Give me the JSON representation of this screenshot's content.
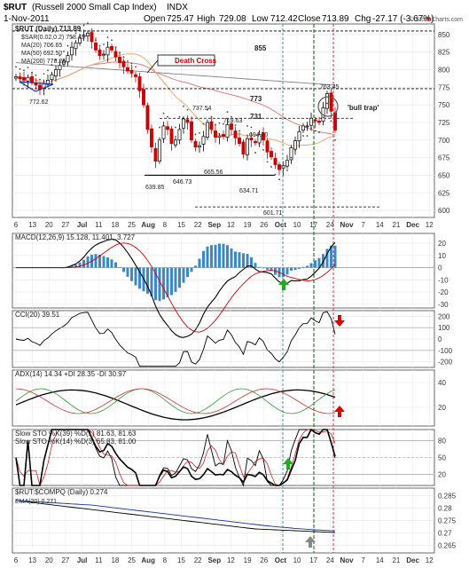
{
  "header": {
    "symbol": "$RUT",
    "name": "(Russell 2000 Small Cap Index)",
    "exchange": "INDX",
    "date": "1-Nov-2011",
    "open_label": "Open",
    "open": "725.47",
    "high_label": "High",
    "high": "729.08",
    "low_label": "Low",
    "low": "712.42",
    "close_label": "Close",
    "close": "713.89",
    "chg_label": "Chg",
    "chg": "-27.17 (-3.67%)",
    "chg_arrow": "▼",
    "watermark": "© StockCharts.com"
  },
  "colors": {
    "up": "#000000",
    "down": "#cc0000",
    "ma20": "#e8a060",
    "ma50": "#e07070",
    "ma200": "#808080",
    "macd_hist": "#3a88c8",
    "arrow_green": "#22aa22",
    "arrow_red": "#dd0000",
    "vline_green": "#117711",
    "vline_teal": "#5599aa",
    "vline_red": "#dd4444"
  },
  "x_axis": {
    "ticks": [
      "6",
      "13",
      "20",
      "27",
      "Jul",
      "11",
      "18",
      "25",
      "Aug",
      "8",
      "15",
      "22",
      "Sep",
      "12",
      "19",
      "26",
      "Oct",
      "10",
      "17",
      "24",
      "Nov",
      "7",
      "14",
      "21",
      "Dec",
      "12"
    ],
    "bold": [
      "Jul",
      "Aug",
      "Sep",
      "Oct",
      "Nov",
      "Dec"
    ]
  },
  "chart_data": [
    {
      "type": "candlestick",
      "title": "$RUT (Daily) 713.89",
      "legend": [
        "$SAR(0.02,0.2) 758.43",
        "MA(20) 706.65",
        "MA(50) 692.50",
        "MA(200) 778.26"
      ],
      "y_ticks": [
        600,
        625,
        650,
        675,
        700,
        725,
        750,
        775,
        800,
        825,
        850
      ],
      "ylim": [
        590,
        865
      ],
      "closes": [
        790,
        787,
        785,
        789,
        782,
        778,
        772,
        780,
        785,
        793,
        800,
        806,
        812,
        820,
        832,
        838,
        845,
        849,
        852,
        840,
        828,
        820,
        822,
        832,
        828,
        818,
        810,
        804,
        798,
        795,
        790,
        770,
        750,
        715,
        690,
        670,
        700,
        720,
        715,
        695,
        700,
        715,
        730,
        725,
        700,
        690,
        692,
        705,
        725,
        715,
        704,
        706,
        705,
        722,
        715,
        703,
        695,
        680,
        702,
        700,
        696,
        708,
        700,
        683,
        676,
        665,
        658,
        664,
        671,
        689,
        699,
        712,
        720,
        720,
        731,
        727,
        725,
        746,
        766,
        741,
        714
      ],
      "annotations": [
        "855",
        "Death Cross",
        "773",
        "731",
        "'bull trap'",
        "772.62",
        "737.54",
        "719.63",
        "694.70",
        "665.56",
        "639.85",
        "646.73",
        "634.71",
        "601.71",
        "763.45"
      ]
    },
    {
      "type": "line",
      "title": "MACD(12,26,9) 15.128, 11.401, 3.727",
      "series": [
        {
          "name": "MACD"
        },
        {
          "name": "Signal"
        },
        {
          "name": "Histogram"
        }
      ],
      "y_ticks": [
        20,
        10,
        0,
        -10,
        -20,
        -30
      ],
      "ylim": [
        -33,
        28
      ]
    },
    {
      "type": "line",
      "title": "CCI(20) 39.51",
      "y_ticks": [
        200,
        100,
        0,
        -100,
        -200
      ],
      "ylim": [
        -250,
        250
      ]
    },
    {
      "type": "line",
      "title": "ADX(14) 14.34 +DI 28.35 -DI 30.97",
      "series": [
        {
          "name": "ADX"
        },
        {
          "name": "+DI"
        },
        {
          "name": "-DI"
        }
      ],
      "y_ticks": [
        40,
        20
      ],
      "ylim": [
        5,
        50
      ]
    },
    {
      "type": "line",
      "title": "Slow STO %K(39) %D(1) 81.63, 81.63",
      "title2": "Slow STO %K(14) %D(3) 65.83, 81.00",
      "y_ticks": [
        80,
        50,
        20
      ],
      "ylim": [
        0,
        100
      ]
    },
    {
      "type": "line",
      "title": "$RUT:$COMPQ (Daily) 0.274",
      "legend": [
        "EMA(20) 0.271"
      ],
      "y_ticks": [
        0.285,
        0.28,
        0.275,
        0.27,
        0.265
      ],
      "ylim": [
        0.262,
        0.288
      ]
    }
  ]
}
